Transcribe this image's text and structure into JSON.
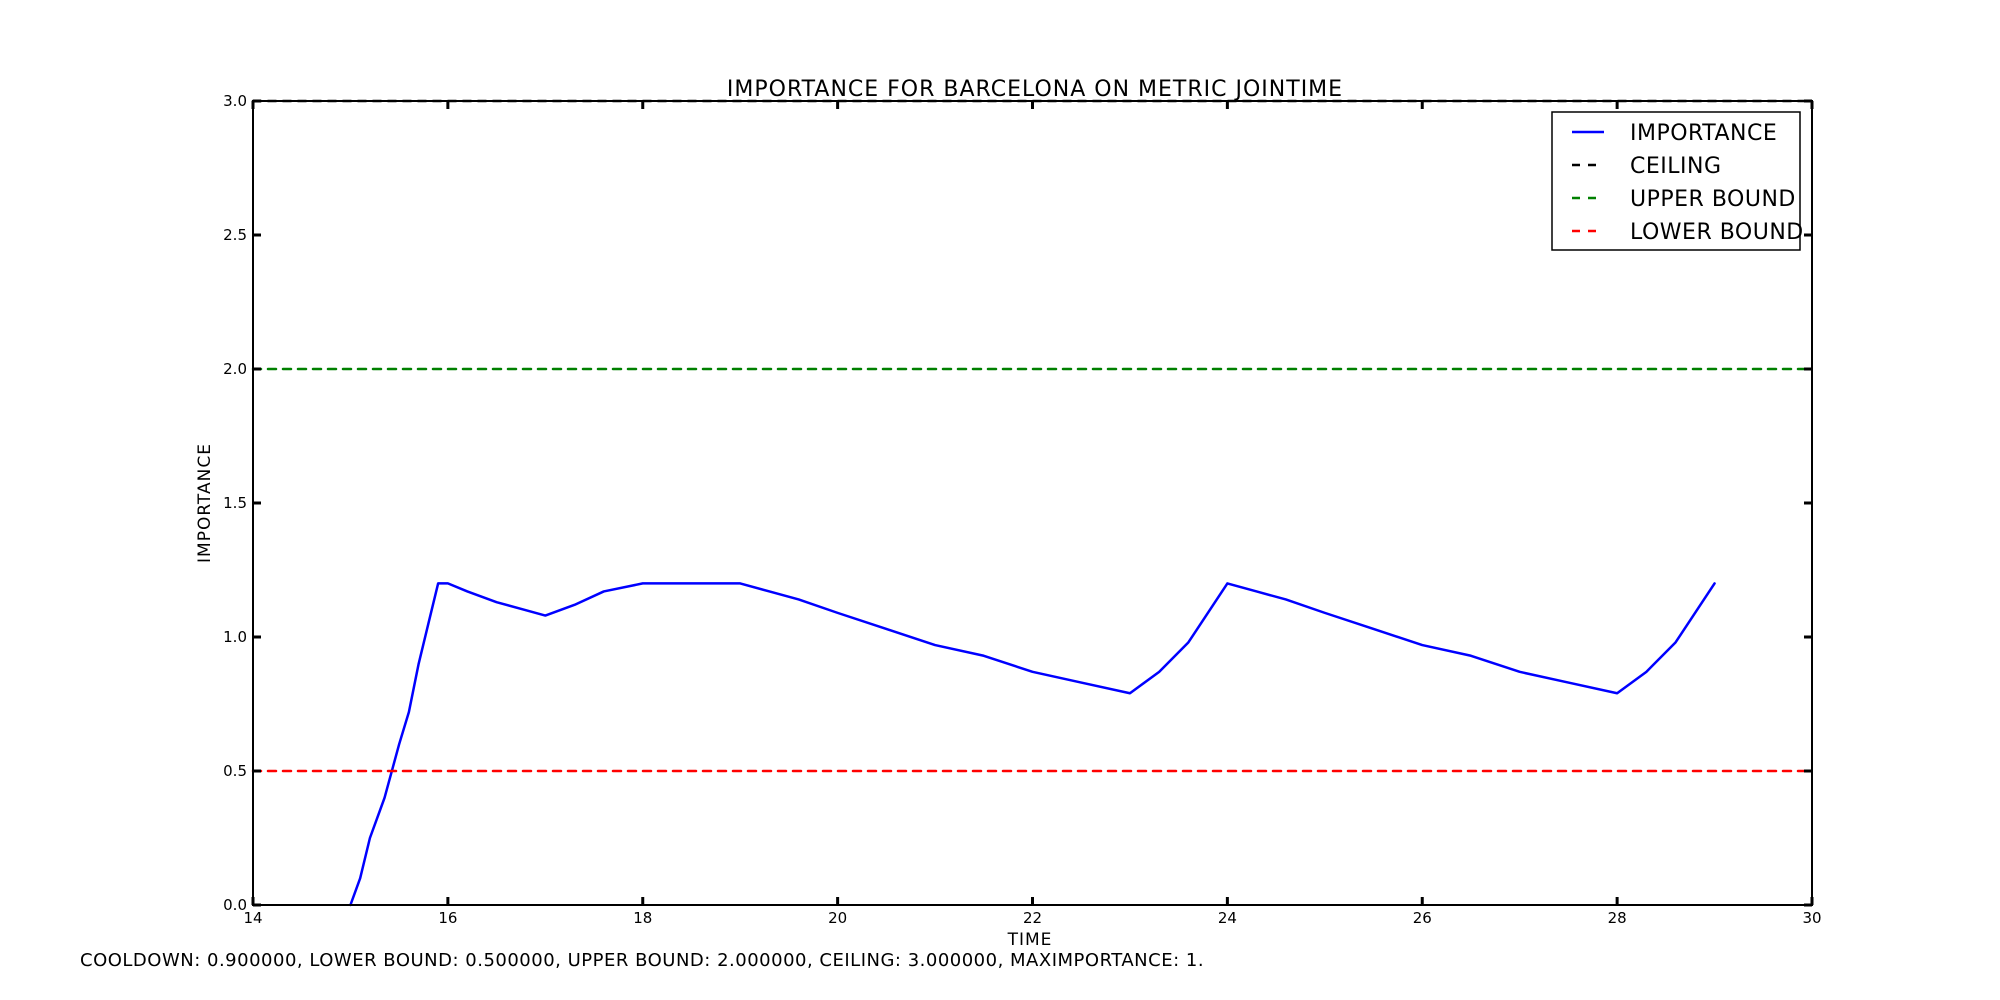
{
  "chart_data": {
    "type": "line",
    "title": "IMPORTANCE FOR BARCELONA ON METRIC JOINTIME",
    "xlabel": "TIME",
    "ylabel": "IMPORTANCE",
    "xlim": [
      14,
      30
    ],
    "ylim": [
      0.0,
      3.0
    ],
    "x_ticks": [
      14,
      16,
      18,
      20,
      22,
      24,
      26,
      28,
      30
    ],
    "y_ticks": [
      "0.0",
      "0.5",
      "1.0",
      "1.5",
      "2.0",
      "2.5",
      "3.0"
    ],
    "grid": false,
    "legend_position": "top-right",
    "series": [
      {
        "name": "IMPORTANCE",
        "color": "#0000ff",
        "style": "solid",
        "x": [
          15.0,
          15.1,
          15.2,
          15.35,
          15.5,
          15.6,
          15.7,
          15.8,
          15.9,
          16.0,
          16.2,
          16.5,
          16.8,
          17.0,
          17.3,
          17.6,
          18.0,
          18.3,
          18.7,
          19.0,
          19.3,
          19.6,
          20.0,
          20.5,
          21.0,
          21.5,
          22.0,
          22.5,
          23.0,
          23.3,
          23.6,
          24.0,
          24.3,
          24.6,
          25.0,
          25.5,
          26.0,
          26.5,
          27.0,
          27.5,
          28.0,
          28.3,
          28.6,
          29.0
        ],
        "y": [
          0.0,
          0.1,
          0.25,
          0.4,
          0.6,
          0.72,
          0.9,
          1.05,
          1.2,
          1.2,
          1.17,
          1.13,
          1.1,
          1.08,
          1.12,
          1.17,
          1.2,
          1.2,
          1.2,
          1.2,
          1.17,
          1.14,
          1.09,
          1.03,
          0.97,
          0.93,
          0.87,
          0.83,
          0.79,
          0.87,
          0.98,
          1.2,
          1.17,
          1.14,
          1.09,
          1.03,
          0.97,
          0.93,
          0.87,
          0.83,
          0.79,
          0.87,
          0.98,
          1.2
        ]
      },
      {
        "name": "CEILING",
        "color": "#000000",
        "style": "dashed",
        "x": [
          14,
          30
        ],
        "y": [
          3.0,
          3.0
        ]
      },
      {
        "name": "UPPER BOUND",
        "color": "#008000",
        "style": "dashed",
        "x": [
          14,
          30
        ],
        "y": [
          2.0,
          2.0
        ]
      },
      {
        "name": "LOWER BOUND",
        "color": "#ff0000",
        "style": "dashed",
        "x": [
          14,
          30
        ],
        "y": [
          0.5,
          0.5
        ]
      }
    ],
    "footer": "COOLDOWN: 0.900000, LOWER BOUND: 0.500000, UPPER BOUND: 2.000000, CEILING: 3.000000, MAXIMPORTANCE: 1."
  }
}
